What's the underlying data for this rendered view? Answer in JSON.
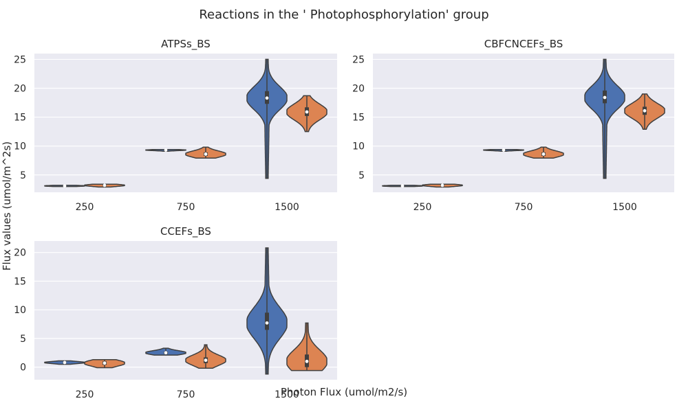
{
  "figure": {
    "title": "Reactions in the ' Photophosphorylation' group",
    "xlabel": "Photon Flux (umol/m2/s)",
    "ylabel": "Flux values (umol/m^2s)"
  },
  "colors": {
    "background": "#eaeaf2",
    "grid": "#ffffff",
    "series_1": "#4c72b0",
    "series_2": "#dd8452",
    "outline": "#3f3f3f"
  },
  "chart_data": [
    {
      "type": "violin",
      "title": "ATPSs_BS",
      "categories": [
        "250",
        "750",
        "1500"
      ],
      "ylim": [
        2,
        26
      ],
      "yticks": [
        5,
        10,
        15,
        20,
        25
      ],
      "grid": true,
      "series": [
        {
          "values": [
            {
              "min": 3.0,
              "q1": 3.0,
              "median": 3.1,
              "q3": 3.1,
              "max": 3.2
            },
            {
              "min": 9.1,
              "q1": 9.2,
              "median": 9.3,
              "q3": 9.3,
              "max": 9.4
            },
            {
              "min": 4.4,
              "q1": 17.3,
              "median": 18.3,
              "q3": 19.5,
              "max": 25.0
            }
          ]
        },
        {
          "values": [
            {
              "min": 2.9,
              "q1": 3.1,
              "median": 3.2,
              "q3": 3.3,
              "max": 3.4
            },
            {
              "min": 7.9,
              "q1": 8.3,
              "median": 8.6,
              "q3": 8.9,
              "max": 9.8
            },
            {
              "min": 12.5,
              "q1": 15.2,
              "median": 15.9,
              "q3": 16.7,
              "max": 18.7
            }
          ]
        }
      ]
    },
    {
      "type": "violin",
      "title": "CBFCNCEFs_BS",
      "categories": [
        "250",
        "750",
        "1500"
      ],
      "ylim": [
        2,
        26
      ],
      "yticks": [
        5,
        10,
        15,
        20,
        25
      ],
      "grid": true,
      "series": [
        {
          "values": [
            {
              "min": 3.0,
              "q1": 3.0,
              "median": 3.1,
              "q3": 3.1,
              "max": 3.2
            },
            {
              "min": 9.1,
              "q1": 9.2,
              "median": 9.3,
              "q3": 9.3,
              "max": 9.4
            },
            {
              "min": 4.4,
              "q1": 17.4,
              "median": 18.4,
              "q3": 19.6,
              "max": 25.0
            }
          ]
        },
        {
          "values": [
            {
              "min": 2.9,
              "q1": 3.1,
              "median": 3.2,
              "q3": 3.3,
              "max": 3.4
            },
            {
              "min": 7.9,
              "q1": 8.3,
              "median": 8.6,
              "q3": 8.9,
              "max": 9.8
            },
            {
              "min": 12.9,
              "q1": 15.4,
              "median": 16.1,
              "q3": 16.8,
              "max": 19.0
            }
          ]
        }
      ]
    },
    {
      "type": "violin",
      "title": "CCEFs_BS",
      "categories": [
        "250",
        "750",
        "1500"
      ],
      "ylim": [
        -2.2,
        22
      ],
      "yticks": [
        0,
        5,
        10,
        15,
        20
      ],
      "grid": true,
      "series": [
        {
          "values": [
            {
              "min": 0.5,
              "q1": 0.7,
              "median": 0.8,
              "q3": 0.9,
              "max": 1.1
            },
            {
              "min": 2.1,
              "q1": 2.3,
              "median": 2.5,
              "q3": 2.7,
              "max": 3.3
            },
            {
              "min": -1.2,
              "q1": 6.5,
              "median": 7.7,
              "q3": 9.5,
              "max": 20.8
            }
          ]
        },
        {
          "values": [
            {
              "min": -0.1,
              "q1": 0.4,
              "median": 0.7,
              "q3": 1.0,
              "max": 1.3
            },
            {
              "min": -0.2,
              "q1": 0.7,
              "median": 1.2,
              "q3": 1.7,
              "max": 3.9
            },
            {
              "min": -0.6,
              "q1": 0.0,
              "median": 1.0,
              "q3": 2.2,
              "max": 7.7
            }
          ]
        }
      ]
    }
  ]
}
